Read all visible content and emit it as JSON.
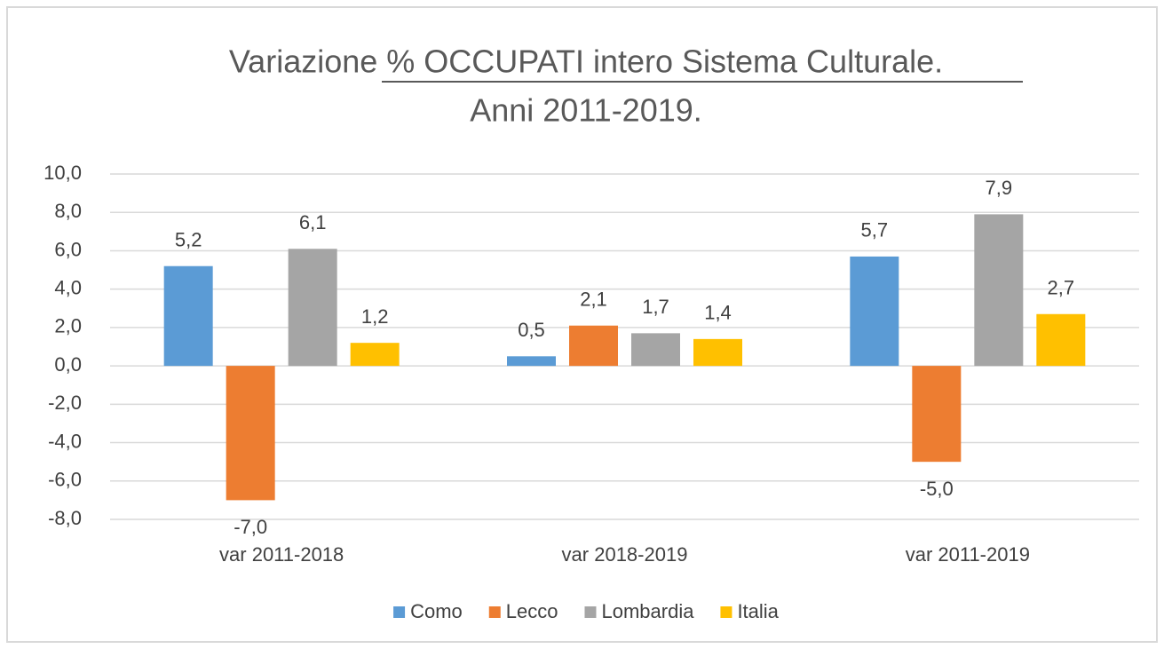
{
  "chart_data": {
    "type": "bar",
    "title": [
      "Variazione % OCCUPATI intero Sistema Culturale.",
      "Anni 2011-2019."
    ],
    "categories": [
      "var 2011-2018",
      "var 2018-2019",
      "var 2011-2019"
    ],
    "series": [
      {
        "name": "Como",
        "color": "#5b9bd5",
        "values": [
          5.2,
          0.5,
          5.7
        ],
        "value_labels": [
          "5,2",
          "0,5",
          "5,7"
        ]
      },
      {
        "name": "Lecco",
        "color": "#ed7d31",
        "values": [
          -7.0,
          2.1,
          -5.0
        ],
        "value_labels": [
          "-7,0",
          "2,1",
          "-5,0"
        ]
      },
      {
        "name": "Lombardia",
        "color": "#a5a5a5",
        "values": [
          6.1,
          1.7,
          7.9
        ],
        "value_labels": [
          "6,1",
          "1,7",
          "7,9"
        ]
      },
      {
        "name": "Italia",
        "color": "#ffc000",
        "values": [
          1.2,
          1.4,
          2.7
        ],
        "value_labels": [
          "1,2",
          "1,4",
          "2,7"
        ]
      }
    ],
    "ylim": [
      -8,
      10
    ],
    "yticks": [
      {
        "value": -8,
        "label": "-8,0"
      },
      {
        "value": -6,
        "label": "-6,0"
      },
      {
        "value": -4,
        "label": "-4,0"
      },
      {
        "value": -2,
        "label": "-2,0"
      },
      {
        "value": 0,
        "label": "0,0"
      },
      {
        "value": 2,
        "label": "2,0"
      },
      {
        "value": 4,
        "label": "4,0"
      },
      {
        "value": 6,
        "label": "6,0"
      },
      {
        "value": 8,
        "label": "8,0"
      },
      {
        "value": 10,
        "label": "10,0"
      }
    ],
    "grid": true,
    "legend": "bottom"
  }
}
